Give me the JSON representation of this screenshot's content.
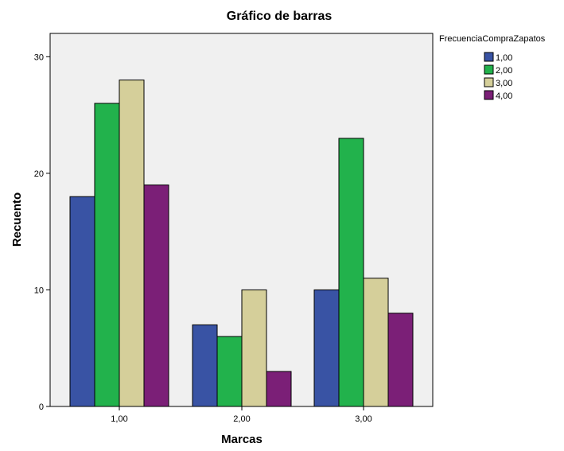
{
  "chart_data": {
    "type": "bar",
    "title": "Gráfico de barras",
    "xlabel": "Marcas",
    "ylabel": "Recuento",
    "categories": [
      "1,00",
      "2,00",
      "3,00"
    ],
    "ylim": [
      0,
      32
    ],
    "yticks": [
      0,
      10,
      20,
      30
    ],
    "ytick_labels": [
      "0",
      "10",
      "20",
      "30"
    ],
    "legend": {
      "title": "FrecuenciaCompraZapatos",
      "placement": "top-right outside"
    },
    "series": [
      {
        "name": "1,00",
        "color": "#3953a4",
        "values": [
          18,
          7,
          10
        ]
      },
      {
        "name": "2,00",
        "color": "#22b24c",
        "values": [
          26,
          6,
          23
        ]
      },
      {
        "name": "3,00",
        "color": "#d5cf9a",
        "values": [
          28,
          10,
          11
        ]
      },
      {
        "name": "4,00",
        "color": "#7b1f77",
        "values": [
          19,
          3,
          8
        ]
      }
    ],
    "plot_background": "#f0f0f0",
    "grid": false
  }
}
